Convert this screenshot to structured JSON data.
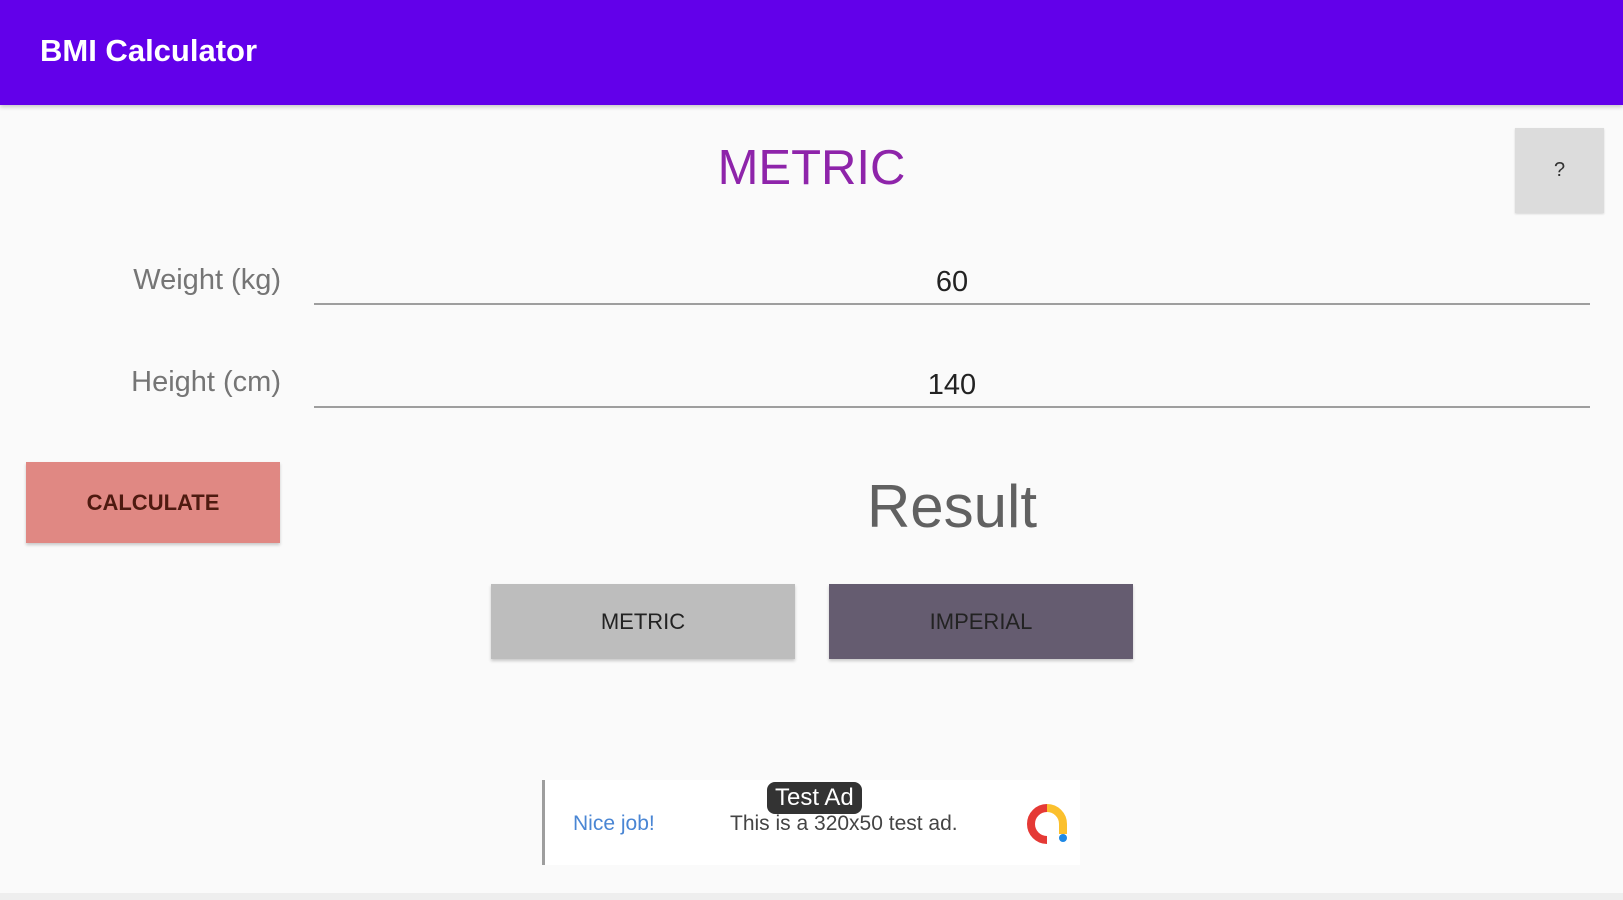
{
  "appbar": {
    "title": "BMI Calculator",
    "color": "#6200ea"
  },
  "mode_title": "METRIC",
  "help_button": "?",
  "form": {
    "weight_label": "Weight (kg)",
    "weight_value": "60",
    "height_label": "Height (cm)",
    "height_value": "140"
  },
  "calculate_label": "CALCULATE",
  "result_text": "Result",
  "units": {
    "metric": "METRIC",
    "imperial": "IMPERIAL"
  },
  "ad": {
    "headline": "Nice job!",
    "body": "This is a 320x50 test ad.",
    "badge": "Test Ad"
  }
}
